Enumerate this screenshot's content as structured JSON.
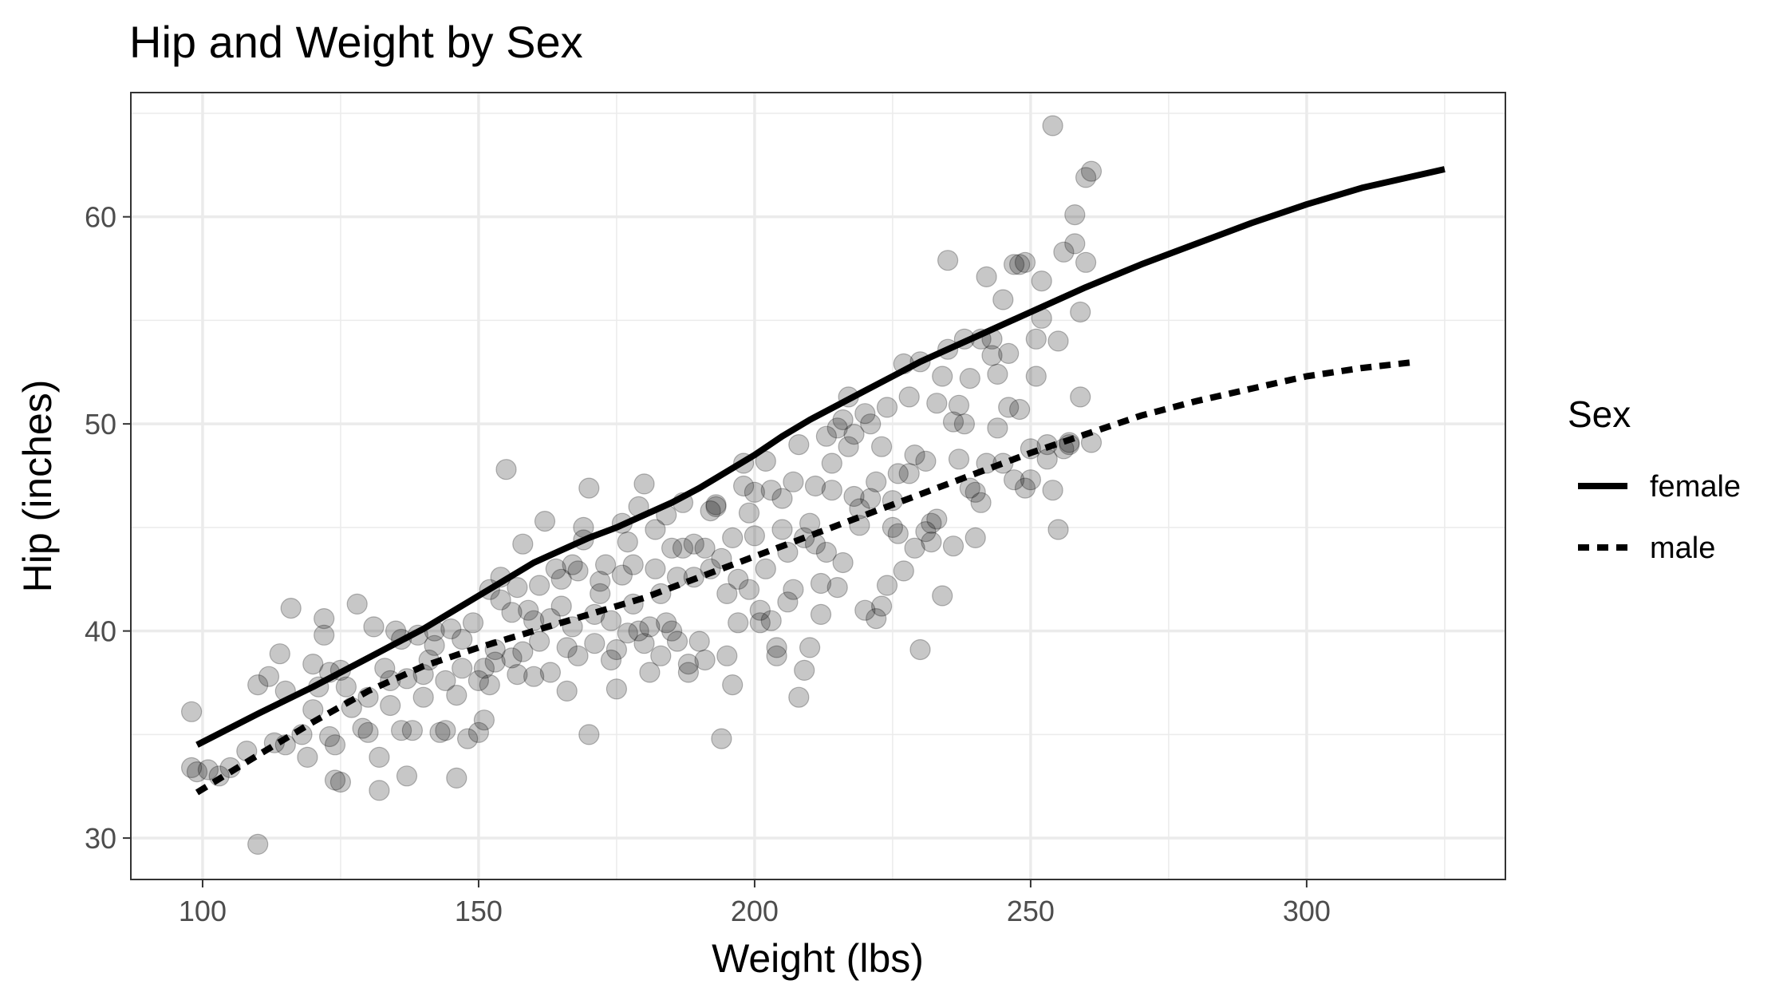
{
  "chart_data": {
    "type": "scatter",
    "title": "Hip and Weight by Sex",
    "xlabel": "Weight (lbs)",
    "ylabel": "Hip (inches)",
    "xlim": [
      87,
      336
    ],
    "ylim": [
      28,
      66
    ],
    "xticks": [
      100,
      150,
      200,
      250,
      300
    ],
    "yticks": [
      30,
      40,
      50,
      60
    ],
    "grid": true,
    "legend": {
      "title": "Sex",
      "position": "right",
      "entries": [
        {
          "label": "female",
          "linestyle": "solid"
        },
        {
          "label": "male",
          "linestyle": "dashed"
        }
      ]
    },
    "point_style": {
      "color": "#000000",
      "opacity": 0.22
    },
    "points": [
      [
        98,
        36.1
      ],
      [
        98,
        33.4
      ],
      [
        99,
        33.2
      ],
      [
        101,
        33.3
      ],
      [
        103,
        33.0
      ],
      [
        105,
        33.4
      ],
      [
        108,
        34.2
      ],
      [
        110,
        29.7
      ],
      [
        110,
        37.4
      ],
      [
        112,
        37.8
      ],
      [
        113,
        34.6
      ],
      [
        114,
        38.9
      ],
      [
        115,
        37.1
      ],
      [
        115,
        34.5
      ],
      [
        116,
        41.1
      ],
      [
        118,
        35.0
      ],
      [
        119,
        33.9
      ],
      [
        120,
        38.4
      ],
      [
        120,
        36.2
      ],
      [
        121,
        37.3
      ],
      [
        122,
        39.8
      ],
      [
        122,
        40.6
      ],
      [
        123,
        38.0
      ],
      [
        123,
        34.9
      ],
      [
        124,
        32.8
      ],
      [
        124,
        34.5
      ],
      [
        125,
        38.1
      ],
      [
        125,
        32.7
      ],
      [
        126,
        37.3
      ],
      [
        127,
        36.3
      ],
      [
        128,
        41.3
      ],
      [
        129,
        35.3
      ],
      [
        130,
        35.1
      ],
      [
        130,
        36.8
      ],
      [
        131,
        40.2
      ],
      [
        132,
        32.3
      ],
      [
        132,
        33.9
      ],
      [
        133,
        38.2
      ],
      [
        134,
        37.6
      ],
      [
        134,
        36.4
      ],
      [
        135,
        40.0
      ],
      [
        136,
        35.2
      ],
      [
        136,
        39.6
      ],
      [
        137,
        37.7
      ],
      [
        137,
        33.0
      ],
      [
        138,
        35.2
      ],
      [
        139,
        39.8
      ],
      [
        140,
        36.8
      ],
      [
        140,
        37.9
      ],
      [
        141,
        38.6
      ],
      [
        142,
        40.0
      ],
      [
        142,
        39.3
      ],
      [
        143,
        35.1
      ],
      [
        144,
        35.2
      ],
      [
        144,
        37.6
      ],
      [
        145,
        40.1
      ],
      [
        146,
        36.9
      ],
      [
        146,
        32.9
      ],
      [
        147,
        39.6
      ],
      [
        147,
        38.2
      ],
      [
        148,
        34.8
      ],
      [
        149,
        40.4
      ],
      [
        150,
        35.1
      ],
      [
        150,
        37.6
      ],
      [
        151,
        35.7
      ],
      [
        151,
        38.2
      ],
      [
        152,
        42.0
      ],
      [
        152,
        37.4
      ],
      [
        153,
        39.1
      ],
      [
        153,
        38.5
      ],
      [
        154,
        42.6
      ],
      [
        154,
        41.5
      ],
      [
        155,
        47.8
      ],
      [
        156,
        40.9
      ],
      [
        156,
        38.7
      ],
      [
        157,
        37.9
      ],
      [
        157,
        42.1
      ],
      [
        158,
        44.2
      ],
      [
        158,
        39.0
      ],
      [
        159,
        41.0
      ],
      [
        160,
        37.8
      ],
      [
        160,
        40.5
      ],
      [
        161,
        39.5
      ],
      [
        161,
        42.2
      ],
      [
        162,
        45.3
      ],
      [
        163,
        40.6
      ],
      [
        163,
        38.0
      ],
      [
        164,
        43.0
      ],
      [
        165,
        41.2
      ],
      [
        165,
        42.5
      ],
      [
        166,
        37.1
      ],
      [
        166,
        39.2
      ],
      [
        167,
        43.2
      ],
      [
        167,
        40.2
      ],
      [
        168,
        38.8
      ],
      [
        168,
        42.9
      ],
      [
        169,
        44.4
      ],
      [
        169,
        45.0
      ],
      [
        170,
        35.0
      ],
      [
        170,
        46.9
      ],
      [
        171,
        39.4
      ],
      [
        171,
        40.8
      ],
      [
        172,
        42.4
      ],
      [
        172,
        41.8
      ],
      [
        173,
        43.2
      ],
      [
        174,
        38.6
      ],
      [
        174,
        40.5
      ],
      [
        175,
        37.2
      ],
      [
        175,
        39.1
      ],
      [
        176,
        42.7
      ],
      [
        176,
        45.2
      ],
      [
        177,
        44.3
      ],
      [
        177,
        39.9
      ],
      [
        178,
        43.2
      ],
      [
        178,
        41.3
      ],
      [
        179,
        46.0
      ],
      [
        179,
        40.0
      ],
      [
        180,
        39.4
      ],
      [
        180,
        47.1
      ],
      [
        181,
        38.0
      ],
      [
        181,
        40.2
      ],
      [
        182,
        43.0
      ],
      [
        182,
        44.9
      ],
      [
        183,
        38.8
      ],
      [
        183,
        41.8
      ],
      [
        184,
        40.4
      ],
      [
        184,
        45.6
      ],
      [
        185,
        44.0
      ],
      [
        185,
        40.0
      ],
      [
        186,
        42.6
      ],
      [
        186,
        39.5
      ],
      [
        187,
        44.0
      ],
      [
        187,
        46.2
      ],
      [
        188,
        38.4
      ],
      [
        188,
        38.0
      ],
      [
        189,
        42.6
      ],
      [
        189,
        44.2
      ],
      [
        190,
        39.5
      ],
      [
        191,
        38.6
      ],
      [
        191,
        44.0
      ],
      [
        192,
        45.8
      ],
      [
        192,
        43.0
      ],
      [
        193,
        46.1
      ],
      [
        193,
        46.0
      ],
      [
        194,
        34.8
      ],
      [
        194,
        43.5
      ],
      [
        195,
        41.8
      ],
      [
        195,
        38.8
      ],
      [
        196,
        37.4
      ],
      [
        196,
        44.5
      ],
      [
        197,
        40.4
      ],
      [
        197,
        42.5
      ],
      [
        198,
        48.1
      ],
      [
        198,
        47.0
      ],
      [
        199,
        42.0
      ],
      [
        199,
        45.7
      ],
      [
        200,
        46.7
      ],
      [
        200,
        44.6
      ],
      [
        201,
        41.0
      ],
      [
        201,
        40.4
      ],
      [
        202,
        43.0
      ],
      [
        202,
        48.2
      ],
      [
        203,
        40.5
      ],
      [
        203,
        46.8
      ],
      [
        204,
        39.2
      ],
      [
        204,
        38.8
      ],
      [
        205,
        44.9
      ],
      [
        205,
        46.4
      ],
      [
        206,
        43.8
      ],
      [
        206,
        41.4
      ],
      [
        207,
        47.2
      ],
      [
        207,
        42.0
      ],
      [
        208,
        49.0
      ],
      [
        208,
        36.8
      ],
      [
        209,
        44.5
      ],
      [
        209,
        38.1
      ],
      [
        210,
        39.2
      ],
      [
        210,
        45.2
      ],
      [
        211,
        47.0
      ],
      [
        211,
        44.2
      ],
      [
        212,
        40.8
      ],
      [
        212,
        42.3
      ],
      [
        213,
        49.4
      ],
      [
        213,
        43.8
      ],
      [
        214,
        48.1
      ],
      [
        214,
        46.8
      ],
      [
        215,
        49.8
      ],
      [
        215,
        42.1
      ],
      [
        216,
        50.2
      ],
      [
        216,
        43.3
      ],
      [
        217,
        51.3
      ],
      [
        217,
        48.9
      ],
      [
        218,
        49.5
      ],
      [
        218,
        46.5
      ],
      [
        219,
        45.1
      ],
      [
        219,
        45.9
      ],
      [
        220,
        50.5
      ],
      [
        220,
        41.0
      ],
      [
        221,
        50.0
      ],
      [
        221,
        46.4
      ],
      [
        222,
        47.2
      ],
      [
        222,
        40.6
      ],
      [
        223,
        48.9
      ],
      [
        223,
        41.2
      ],
      [
        224,
        50.8
      ],
      [
        224,
        42.2
      ],
      [
        225,
        46.3
      ],
      [
        225,
        45.0
      ],
      [
        226,
        47.6
      ],
      [
        226,
        44.7
      ],
      [
        227,
        52.9
      ],
      [
        227,
        42.9
      ],
      [
        228,
        47.6
      ],
      [
        228,
        51.3
      ],
      [
        229,
        48.5
      ],
      [
        229,
        44.0
      ],
      [
        230,
        53.0
      ],
      [
        230,
        39.1
      ],
      [
        231,
        44.8
      ],
      [
        231,
        48.2
      ],
      [
        232,
        45.2
      ],
      [
        232,
        44.3
      ],
      [
        233,
        51.0
      ],
      [
        233,
        45.4
      ],
      [
        234,
        52.3
      ],
      [
        234,
        41.7
      ],
      [
        235,
        57.9
      ],
      [
        235,
        53.6
      ],
      [
        236,
        50.1
      ],
      [
        236,
        44.1
      ],
      [
        237,
        50.9
      ],
      [
        237,
        48.3
      ],
      [
        238,
        54.1
      ],
      [
        238,
        50.0
      ],
      [
        239,
        52.2
      ],
      [
        239,
        46.9
      ],
      [
        240,
        46.7
      ],
      [
        240,
        44.5
      ],
      [
        241,
        54.1
      ],
      [
        241,
        46.2
      ],
      [
        242,
        48.1
      ],
      [
        242,
        57.1
      ],
      [
        243,
        53.3
      ],
      [
        243,
        54.1
      ],
      [
        244,
        52.4
      ],
      [
        244,
        49.8
      ],
      [
        245,
        56.0
      ],
      [
        245,
        48.1
      ],
      [
        246,
        53.4
      ],
      [
        246,
        50.8
      ],
      [
        247,
        47.3
      ],
      [
        247,
        57.7
      ],
      [
        248,
        57.7
      ],
      [
        248,
        50.7
      ],
      [
        249,
        46.9
      ],
      [
        249,
        57.8
      ],
      [
        250,
        47.3
      ],
      [
        250,
        48.8
      ],
      [
        251,
        52.3
      ],
      [
        251,
        54.1
      ],
      [
        252,
        55.1
      ],
      [
        252,
        56.9
      ],
      [
        253,
        49.0
      ],
      [
        253,
        48.3
      ],
      [
        254,
        46.8
      ],
      [
        254,
        64.4
      ],
      [
        255,
        54.0
      ],
      [
        255,
        44.9
      ],
      [
        256,
        48.8
      ],
      [
        256,
        58.3
      ],
      [
        257,
        49.0
      ],
      [
        257,
        49.1
      ],
      [
        258,
        58.7
      ],
      [
        258,
        60.1
      ],
      [
        259,
        55.4
      ],
      [
        259,
        51.3
      ],
      [
        260,
        61.9
      ],
      [
        260,
        57.8
      ],
      [
        261,
        49.1
      ],
      [
        261,
        62.2
      ]
    ],
    "series": [
      {
        "name": "female",
        "linestyle": "solid",
        "x": [
          99,
          110,
          120,
          130,
          140,
          150,
          155,
          160,
          165,
          170,
          175,
          180,
          185,
          190,
          195,
          200,
          205,
          210,
          215,
          220,
          225,
          230,
          235,
          240,
          250,
          260,
          270,
          280,
          290,
          300,
          310,
          325
        ],
        "y": [
          34.5,
          36.0,
          37.3,
          38.7,
          40.1,
          41.7,
          42.5,
          43.3,
          43.9,
          44.5,
          45.0,
          45.6,
          46.2,
          46.9,
          47.7,
          48.5,
          49.4,
          50.2,
          50.9,
          51.6,
          52.3,
          53.0,
          53.6,
          54.2,
          55.4,
          56.6,
          57.7,
          58.7,
          59.7,
          60.6,
          61.4,
          62.3
        ]
      },
      {
        "name": "male",
        "linestyle": "dashed",
        "x": [
          99,
          110,
          120,
          130,
          140,
          150,
          160,
          170,
          180,
          190,
          200,
          210,
          220,
          230,
          240,
          250,
          260,
          270,
          280,
          290,
          300,
          310,
          320
        ],
        "y": [
          32.2,
          34.0,
          35.6,
          37.1,
          38.3,
          39.2,
          40.0,
          40.8,
          41.6,
          42.6,
          43.6,
          44.6,
          45.6,
          46.6,
          47.6,
          48.6,
          49.5,
          50.4,
          51.1,
          51.7,
          52.3,
          52.7,
          53.0
        ]
      }
    ]
  }
}
